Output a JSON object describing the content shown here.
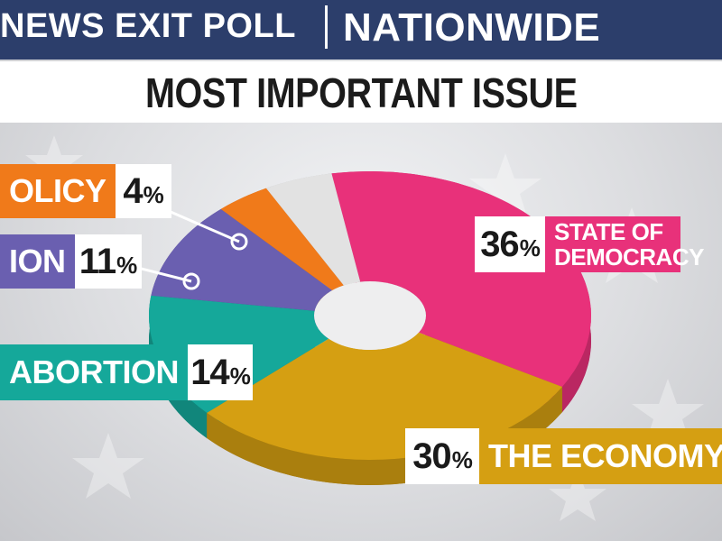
{
  "header": {
    "left_text": "NEWS EXIT POLL",
    "right_text": "NATIONWIDE",
    "bar_color": "#2c3e6b"
  },
  "chart_data": {
    "type": "pie",
    "title": "MOST IMPORTANT ISSUE",
    "slices": [
      {
        "label": "STATE OF DEMOCRACY",
        "value": 36,
        "display": "36",
        "color": "#e8317a"
      },
      {
        "label": "THE ECONOMY",
        "value": 30,
        "display": "30",
        "color": "#d59f12"
      },
      {
        "label": "ABORTION",
        "value": 14,
        "display": "14",
        "color": "#15a89a"
      },
      {
        "label": "ION",
        "value": 11,
        "display": "11",
        "color": "#6a5fb0"
      },
      {
        "label": "OLICY",
        "value": 4,
        "display": "4",
        "color": "#f07a1a"
      },
      {
        "label": "",
        "value": 5,
        "display": "",
        "color": "#e2e2e2"
      }
    ],
    "donut": true,
    "percent_sign": "%"
  }
}
